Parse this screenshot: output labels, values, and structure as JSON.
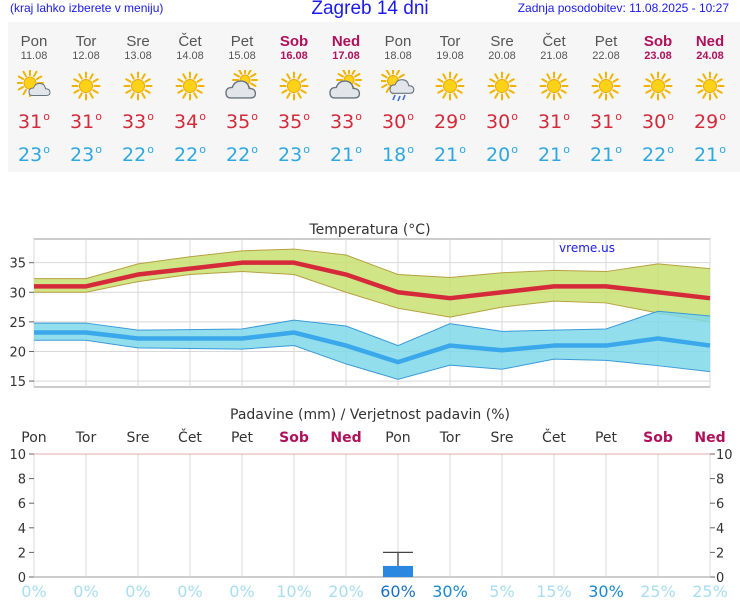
{
  "header": {
    "menu_hint": "(kraj lahko izberete v meniju)",
    "title": "Zagreb 14 dni",
    "updated": "Zadnja posodobitev: 11.08.2025 - 10:27"
  },
  "days": [
    {
      "name": "Pon",
      "date": "11.08",
      "weekend": false,
      "icon": "sun-cloud-icon",
      "tmax": "31",
      "tmin": "23"
    },
    {
      "name": "Tor",
      "date": "12.08",
      "weekend": false,
      "icon": "sun-icon",
      "tmax": "31",
      "tmin": "23"
    },
    {
      "name": "Sre",
      "date": "13.08",
      "weekend": false,
      "icon": "sun-icon",
      "tmax": "33",
      "tmin": "22"
    },
    {
      "name": "Čet",
      "date": "14.08",
      "weekend": false,
      "icon": "sun-icon",
      "tmax": "34",
      "tmin": "22"
    },
    {
      "name": "Pet",
      "date": "15.08",
      "weekend": false,
      "icon": "cloud-sun-icon",
      "tmax": "35",
      "tmin": "22"
    },
    {
      "name": "Sob",
      "date": "16.08",
      "weekend": true,
      "icon": "sun-icon",
      "tmax": "35",
      "tmin": "23"
    },
    {
      "name": "Ned",
      "date": "17.08",
      "weekend": true,
      "icon": "cloud-sun-icon",
      "tmax": "33",
      "tmin": "21"
    },
    {
      "name": "Pon",
      "date": "18.08",
      "weekend": false,
      "icon": "sun-cloud-rain-icon",
      "tmax": "30",
      "tmin": "18"
    },
    {
      "name": "Tor",
      "date": "19.08",
      "weekend": false,
      "icon": "sun-icon",
      "tmax": "29",
      "tmin": "21"
    },
    {
      "name": "Sre",
      "date": "20.08",
      "weekend": false,
      "icon": "sun-icon",
      "tmax": "30",
      "tmin": "20"
    },
    {
      "name": "Čet",
      "date": "21.08",
      "weekend": false,
      "icon": "sun-icon",
      "tmax": "31",
      "tmin": "21"
    },
    {
      "name": "Pet",
      "date": "22.08",
      "weekend": false,
      "icon": "sun-icon",
      "tmax": "31",
      "tmin": "21"
    },
    {
      "name": "Sob",
      "date": "23.08",
      "weekend": true,
      "icon": "sun-icon",
      "tmax": "30",
      "tmin": "22"
    },
    {
      "name": "Ned",
      "date": "24.08",
      "weekend": true,
      "icon": "sun-icon",
      "tmax": "29",
      "tmin": "21"
    }
  ],
  "colors": {
    "max_line": "#d42a3a",
    "min_line": "#3aa8ea",
    "max_band": "#c8e070",
    "min_band": "#7fd8ea",
    "precip_bar": "#2a88e0",
    "weekend_text": "#b0115a",
    "prob_low": "#a8ddf0",
    "prob_high": "#1a88cc"
  },
  "chart_data": [
    {
      "type": "line",
      "title": "Temperatura (°C)",
      "watermark": "vreme.us",
      "categories": [
        "Pon",
        "Tor",
        "Sre",
        "Čet",
        "Pet",
        "Sob",
        "Ned",
        "Pon",
        "Tor",
        "Sre",
        "Čet",
        "Pet",
        "Sob",
        "Ned"
      ],
      "ylim": [
        14,
        39
      ],
      "yticks": [
        "15",
        "20",
        "25",
        "30",
        "35"
      ],
      "grid": true,
      "series": [
        {
          "values": [
            31,
            31,
            33,
            34,
            35,
            35,
            33,
            30,
            29,
            30,
            31,
            31,
            30,
            29
          ],
          "band_high": [
            32.3,
            32.3,
            34.8,
            36.0,
            37.0,
            37.3,
            36.3,
            33.0,
            32.5,
            33.3,
            33.7,
            33.5,
            34.8,
            34.0
          ],
          "band_low": [
            30.0,
            30.0,
            31.8,
            33.0,
            33.5,
            33.0,
            30.0,
            27.3,
            25.8,
            27.5,
            28.5,
            28.2,
            26.5,
            25.0
          ]
        },
        {
          "values": [
            23.2,
            23.2,
            22.2,
            22.2,
            22.2,
            23.2,
            21.0,
            18.2,
            21.0,
            20.2,
            21.0,
            21.0,
            22.2,
            21.0
          ],
          "band_high": [
            24.8,
            24.8,
            23.6,
            23.7,
            23.8,
            25.3,
            24.3,
            21.0,
            24.7,
            23.4,
            23.6,
            23.8,
            26.8,
            26.0
          ],
          "band_low": [
            21.9,
            21.9,
            20.6,
            20.5,
            20.4,
            21.0,
            17.9,
            15.3,
            17.7,
            17.0,
            18.7,
            18.5,
            17.6,
            16.6
          ]
        }
      ]
    },
    {
      "type": "bar",
      "title": "Padavine (mm) / Verjetnost padavin (%)",
      "categories": [
        "Pon",
        "Tor",
        "Sre",
        "Čet",
        "Pet",
        "Sob",
        "Ned",
        "Pon",
        "Tor",
        "Sre",
        "Čet",
        "Pet",
        "Sob",
        "Ned"
      ],
      "ylim": [
        0,
        10
      ],
      "yticks": [
        "0",
        "2",
        "4",
        "6",
        "8",
        "10"
      ],
      "precip_mm": [
        0,
        0,
        0,
        0,
        0,
        0,
        0,
        0.9,
        0,
        0,
        0,
        0,
        0,
        0
      ],
      "precip_max_mm": [
        0,
        0,
        0,
        0,
        0,
        0,
        0,
        2.0,
        0,
        0,
        0,
        0,
        0,
        0
      ],
      "probability": [
        "0%",
        "0%",
        "0%",
        "0%",
        "0%",
        "10%",
        "20%",
        "60%",
        "30%",
        "5%",
        "15%",
        "30%",
        "25%",
        "25%"
      ]
    }
  ]
}
